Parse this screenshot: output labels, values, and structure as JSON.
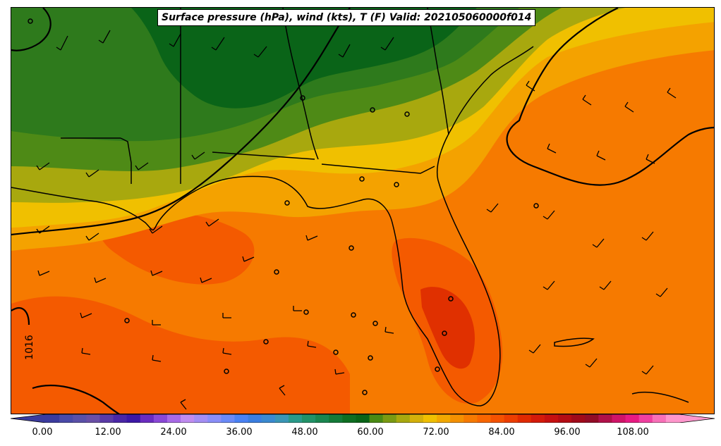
{
  "title": "Surface pressure (hPa), wind (kts), T (F) Valid: 202105060000f014",
  "isobar_label": "1016",
  "colorbar": {
    "tick_labels": [
      "0.00",
      "12.00",
      "24.00",
      "36.00",
      "48.00",
      "60.00",
      "72.00",
      "84.00",
      "96.00",
      "108.00"
    ],
    "colors": [
      "#3b3b9e",
      "#4a4aa8",
      "#5a50a8",
      "#6a4fa6",
      "#5a3aa6",
      "#4a26a6",
      "#3c18a6",
      "#6a2cc0",
      "#8a48d6",
      "#a86ae6",
      "#c08cf0",
      "#a48ef4",
      "#8a8ef8",
      "#6a8af8",
      "#4a82f4",
      "#3a7ee0",
      "#3a8ad0",
      "#3a96b6",
      "#2a9a8a",
      "#229268",
      "#1a8650",
      "#147a38",
      "#0e6e22",
      "#0a6418",
      "#4a8a14",
      "#7a9a12",
      "#a8a80e",
      "#d4b00a",
      "#f0c000",
      "#f2a800",
      "#f49000",
      "#f67a00",
      "#f86600",
      "#f45200",
      "#ec3e00",
      "#e02a00",
      "#d41a0a",
      "#c61010",
      "#b40c14",
      "#a00a1a",
      "#920c26",
      "#b0104a",
      "#d01468",
      "#e81a82",
      "#f040a0",
      "#f870b8",
      "#ff96cc"
    ]
  },
  "stations_note": "",
  "map": {
    "colors": {
      "dark_green": "#0a6418",
      "mid_green": "#3a7a1a",
      "olive": "#7a9a12",
      "olive_yellow": "#a8a80e",
      "yellow": "#f0c000",
      "orange_light": "#f4a200",
      "orange": "#f67a00",
      "orange_red": "#f45a00",
      "red": "#e03000"
    }
  }
}
